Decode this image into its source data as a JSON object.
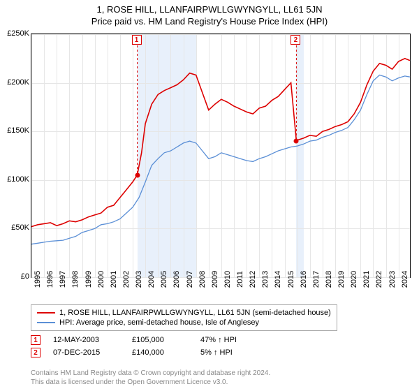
{
  "title": "1, ROSE HILL, LLANFAIRPWLLGWYNGYLL, LL61 5JN",
  "subtitle": "Price paid vs. HM Land Registry's House Price Index (HPI)",
  "chart": {
    "type": "line",
    "x_range": [
      1995,
      2024.9
    ],
    "y_range": [
      0,
      250000
    ],
    "y_ticks": [
      0,
      50000,
      100000,
      150000,
      200000,
      250000
    ],
    "y_tick_labels": [
      "£0",
      "£50K",
      "£100K",
      "£150K",
      "£200K",
      "£250K"
    ],
    "x_ticks": [
      1995,
      1996,
      1997,
      1998,
      1999,
      2000,
      2001,
      2002,
      2003,
      2004,
      2005,
      2006,
      2007,
      2008,
      2009,
      2010,
      2011,
      2012,
      2013,
      2014,
      2015,
      2016,
      2017,
      2018,
      2019,
      2020,
      2021,
      2022,
      2023,
      2024
    ],
    "grid_color": "#e6e6e6",
    "background_color": "#ffffff",
    "border_color": "#000000",
    "shade_color": "#e8f0fb",
    "shade_regions": [
      [
        2003.36,
        2008.0
      ],
      [
        2015.93,
        2016.5
      ]
    ],
    "series": [
      {
        "name": "property",
        "label": "1, ROSE HILL, LLANFAIRPWLLGWYNGYLL, LL61 5JN (semi-detached house)",
        "color": "#dd0000",
        "width": 1.6,
        "points": [
          [
            1995,
            52000
          ],
          [
            1995.5,
            54000
          ],
          [
            1996,
            55000
          ],
          [
            1996.5,
            56000
          ],
          [
            1997,
            53000
          ],
          [
            1997.5,
            55000
          ],
          [
            1998,
            58000
          ],
          [
            1998.5,
            57000
          ],
          [
            1999,
            59000
          ],
          [
            1999.5,
            62000
          ],
          [
            2000,
            64000
          ],
          [
            2000.5,
            66000
          ],
          [
            2001,
            72000
          ],
          [
            2001.5,
            74000
          ],
          [
            2002,
            82000
          ],
          [
            2002.5,
            90000
          ],
          [
            2003,
            98000
          ],
          [
            2003.36,
            105000
          ],
          [
            2003.7,
            128000
          ],
          [
            2004,
            158000
          ],
          [
            2004.5,
            178000
          ],
          [
            2005,
            188000
          ],
          [
            2005.5,
            192000
          ],
          [
            2006,
            195000
          ],
          [
            2006.5,
            198000
          ],
          [
            2007,
            203000
          ],
          [
            2007.5,
            210000
          ],
          [
            2008,
            208000
          ],
          [
            2008.5,
            190000
          ],
          [
            2009,
            172000
          ],
          [
            2009.5,
            178000
          ],
          [
            2010,
            183000
          ],
          [
            2010.5,
            180000
          ],
          [
            2011,
            176000
          ],
          [
            2011.5,
            173000
          ],
          [
            2012,
            170000
          ],
          [
            2012.5,
            168000
          ],
          [
            2013,
            174000
          ],
          [
            2013.5,
            176000
          ],
          [
            2014,
            182000
          ],
          [
            2014.5,
            186000
          ],
          [
            2015,
            193000
          ],
          [
            2015.5,
            200000
          ],
          [
            2015.93,
            140000
          ],
          [
            2016,
            141000
          ],
          [
            2016.5,
            143000
          ],
          [
            2017,
            146000
          ],
          [
            2017.5,
            145000
          ],
          [
            2018,
            150000
          ],
          [
            2018.5,
            152000
          ],
          [
            2019,
            155000
          ],
          [
            2019.5,
            157000
          ],
          [
            2020,
            160000
          ],
          [
            2020.5,
            168000
          ],
          [
            2021,
            180000
          ],
          [
            2021.5,
            198000
          ],
          [
            2022,
            212000
          ],
          [
            2022.5,
            220000
          ],
          [
            2023,
            218000
          ],
          [
            2023.5,
            214000
          ],
          [
            2024,
            222000
          ],
          [
            2024.5,
            225000
          ],
          [
            2024.9,
            223000
          ]
        ]
      },
      {
        "name": "hpi",
        "label": "HPI: Average price, semi-detached house, Isle of Anglesey",
        "color": "#5b8fd6",
        "width": 1.3,
        "points": [
          [
            1995,
            34000
          ],
          [
            1995.5,
            35000
          ],
          [
            1996,
            36000
          ],
          [
            1996.5,
            37000
          ],
          [
            1997,
            37500
          ],
          [
            1997.5,
            38000
          ],
          [
            1998,
            40000
          ],
          [
            1998.5,
            42000
          ],
          [
            1999,
            46000
          ],
          [
            1999.5,
            48000
          ],
          [
            2000,
            50000
          ],
          [
            2000.5,
            54000
          ],
          [
            2001,
            55000
          ],
          [
            2001.5,
            57000
          ],
          [
            2002,
            60000
          ],
          [
            2002.5,
            66000
          ],
          [
            2003,
            72000
          ],
          [
            2003.5,
            82000
          ],
          [
            2004,
            98000
          ],
          [
            2004.5,
            115000
          ],
          [
            2005,
            122000
          ],
          [
            2005.5,
            128000
          ],
          [
            2006,
            130000
          ],
          [
            2006.5,
            134000
          ],
          [
            2007,
            138000
          ],
          [
            2007.5,
            140000
          ],
          [
            2008,
            138000
          ],
          [
            2008.5,
            130000
          ],
          [
            2009,
            122000
          ],
          [
            2009.5,
            124000
          ],
          [
            2010,
            128000
          ],
          [
            2010.5,
            126000
          ],
          [
            2011,
            124000
          ],
          [
            2011.5,
            122000
          ],
          [
            2012,
            120000
          ],
          [
            2012.5,
            119000
          ],
          [
            2013,
            122000
          ],
          [
            2013.5,
            124000
          ],
          [
            2014,
            127000
          ],
          [
            2014.5,
            130000
          ],
          [
            2015,
            132000
          ],
          [
            2015.5,
            134000
          ],
          [
            2016,
            135000
          ],
          [
            2016.5,
            137000
          ],
          [
            2017,
            140000
          ],
          [
            2017.5,
            141000
          ],
          [
            2018,
            144000
          ],
          [
            2018.5,
            146000
          ],
          [
            2019,
            149000
          ],
          [
            2019.5,
            151000
          ],
          [
            2020,
            154000
          ],
          [
            2020.5,
            162000
          ],
          [
            2021,
            172000
          ],
          [
            2021.5,
            188000
          ],
          [
            2022,
            202000
          ],
          [
            2022.5,
            208000
          ],
          [
            2023,
            206000
          ],
          [
            2023.5,
            202000
          ],
          [
            2024,
            205000
          ],
          [
            2024.5,
            207000
          ],
          [
            2024.9,
            206000
          ]
        ]
      }
    ],
    "markers": [
      {
        "id": "1",
        "x": 2003.36,
        "y": 105000
      },
      {
        "id": "2",
        "x": 2015.93,
        "y": 140000
      }
    ]
  },
  "legend": {
    "rows": [
      {
        "color": "#dd0000",
        "label": "1, ROSE HILL, LLANFAIRPWLLGWYNGYLL, LL61 5JN (semi-detached house)"
      },
      {
        "color": "#5b8fd6",
        "label": "HPI: Average price, semi-detached house, Isle of Anglesey"
      }
    ]
  },
  "events": [
    {
      "id": "1",
      "date": "12-MAY-2003",
      "price": "£105,000",
      "hpi": "47% ↑ HPI"
    },
    {
      "id": "2",
      "date": "07-DEC-2015",
      "price": "£140,000",
      "hpi": "5% ↑ HPI"
    }
  ],
  "footer": {
    "line1": "Contains HM Land Registry data © Crown copyright and database right 2024.",
    "line2": "This data is licensed under the Open Government Licence v3.0."
  }
}
